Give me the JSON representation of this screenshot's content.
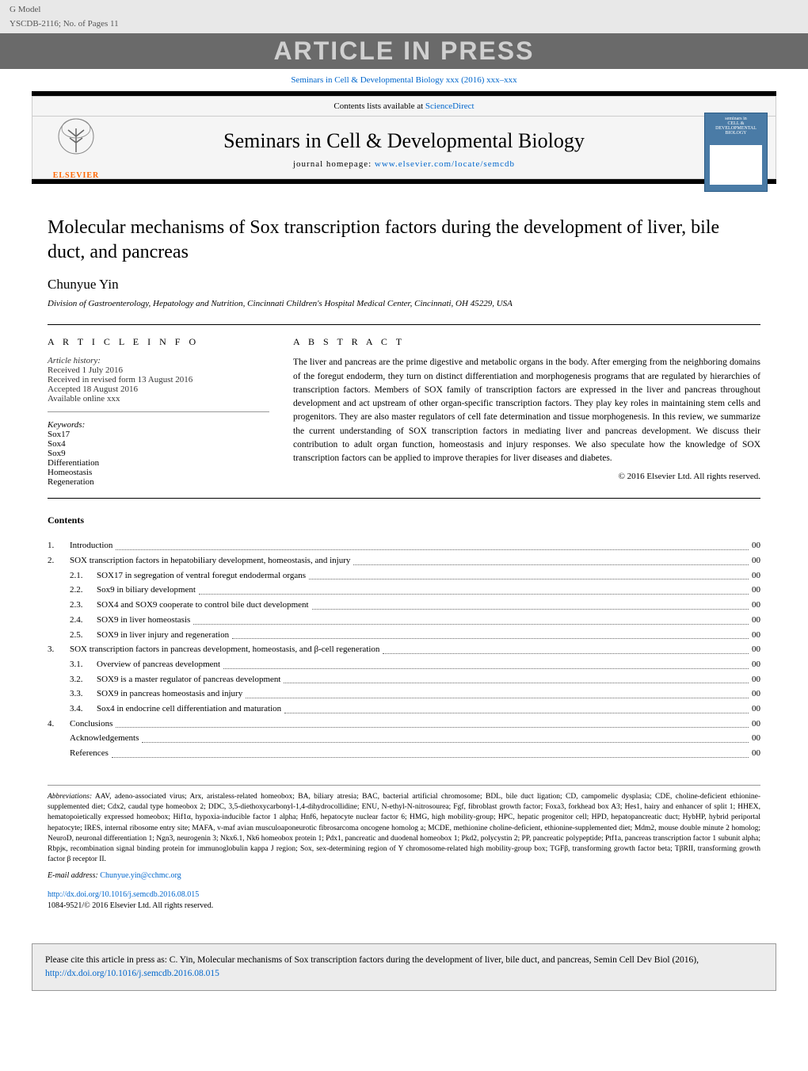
{
  "header": {
    "gmodel": "G Model",
    "docid": "YSCDB-2116;   No. of Pages 11",
    "in_press": "ARTICLE IN PRESS",
    "journal_ref": "Seminars in Cell & Developmental Biology xxx (2016) xxx–xxx",
    "contents_available": "Contents lists available at ",
    "sciencedirect": "ScienceDirect",
    "journal_name": "Seminars in Cell & Developmental Biology",
    "homepage_label": "journal homepage: ",
    "homepage_url": "www.elsevier.com/locate/semcdb",
    "publisher": "ELSEVIER"
  },
  "article": {
    "title": "Molecular mechanisms of Sox transcription factors during the development of liver, bile duct, and pancreas",
    "author": "Chunyue Yin",
    "affiliation": "Division of Gastroenterology, Hepatology and Nutrition, Cincinnati Children's Hospital Medical Center, Cincinnati, OH 45229, USA"
  },
  "info": {
    "heading": "A R T I C L E   I N F O",
    "history_label": "Article history:",
    "received": "Received 1 July 2016",
    "revised": "Received in revised form 13 August 2016",
    "accepted": "Accepted 18 August 2016",
    "online": "Available online xxx",
    "keywords_label": "Keywords:",
    "keywords": [
      "Sox17",
      "Sox4",
      "Sox9",
      "Differentiation",
      "Homeostasis",
      "Regeneration"
    ]
  },
  "abstract": {
    "heading": "A B S T R A C T",
    "text": "The liver and pancreas are the prime digestive and metabolic organs in the body. After emerging from the neighboring domains of the foregut endoderm, they turn on distinct differentiation and morphogenesis programs that are regulated by hierarchies of transcription factors. Members of SOX family of transcription factors are expressed in the liver and pancreas throughout development and act upstream of other organ-specific transcription factors. They play key roles in maintaining stem cells and progenitors. They are also master regulators of cell fate determination and tissue morphogenesis. In this review, we summarize the current understanding of SOX transcription factors in mediating liver and pancreas development. We discuss their contribution to adult organ function, homeostasis and injury responses. We also speculate how the knowledge of SOX transcription factors can be applied to improve therapies for liver diseases and diabetes.",
    "copyright": "© 2016 Elsevier Ltd. All rights reserved."
  },
  "contents": {
    "heading": "Contents",
    "items": [
      {
        "num": "1.",
        "sub": "",
        "label": "Introduction",
        "page": "00"
      },
      {
        "num": "2.",
        "sub": "",
        "label": "SOX transcription factors in hepatobiliary development, homeostasis, and injury",
        "page": "00"
      },
      {
        "num": "",
        "sub": "2.1.",
        "label": "SOX17 in segregation of ventral foregut endodermal organs",
        "page": "00"
      },
      {
        "num": "",
        "sub": "2.2.",
        "label": "Sox9 in biliary development",
        "page": "00"
      },
      {
        "num": "",
        "sub": "2.3.",
        "label": "SOX4 and SOX9 cooperate to control bile duct development",
        "page": "00"
      },
      {
        "num": "",
        "sub": "2.4.",
        "label": "SOX9 in liver homeostasis",
        "page": "00"
      },
      {
        "num": "",
        "sub": "2.5.",
        "label": "SOX9 in liver injury and regeneration",
        "page": "00"
      },
      {
        "num": "3.",
        "sub": "",
        "label": "SOX transcription factors in pancreas development, homeostasis, and β-cell regeneration",
        "page": "00"
      },
      {
        "num": "",
        "sub": "3.1.",
        "label": "Overview of pancreas development",
        "page": "00"
      },
      {
        "num": "",
        "sub": "3.2.",
        "label": "SOX9 is a master regulator of pancreas development",
        "page": "00"
      },
      {
        "num": "",
        "sub": "3.3.",
        "label": "SOX9 in pancreas homeostasis and injury",
        "page": "00"
      },
      {
        "num": "",
        "sub": "3.4.",
        "label": "Sox4 in endocrine cell differentiation and maturation",
        "page": "00"
      },
      {
        "num": "4.",
        "sub": "",
        "label": "Conclusions",
        "page": "00"
      },
      {
        "num": "",
        "sub": "",
        "label": "Acknowledgements",
        "page": "00",
        "indent": true
      },
      {
        "num": "",
        "sub": "",
        "label": "References",
        "page": "00",
        "indent": true
      }
    ]
  },
  "footnotes": {
    "abbrev_label": "Abbreviations:",
    "abbrev_text": "  AAV, adeno-associated virus; Arx, aristaless-related homeobox; BA, biliary atresia; BAC, bacterial artificial chromosome; BDL, bile duct ligation; CD, campomelic dysplasia; CDE, choline-deficient ethionine-supplemented diet; Cdx2, caudal type homeobox 2; DDC, 3,5-diethoxycarbonyl-1,4-dihydrocollidine; ENU, N-ethyl-N-nitrosourea; Fgf, fibroblast growth factor; Foxa3, forkhead box A3; Hes1, hairy and enhancer of split 1; HHEX, hematopoietically expressed homeobox; Hif1α, hypoxia-inducible factor 1 alpha; Hnf6, hepatocyte nuclear factor 6; HMG, high mobility-group; HPC, hepatic progenitor cell; HPD, hepatopancreatic duct; HybHP, hybrid periportal hepatocyte; IRES, internal ribosome entry site; MAFA, v-maf avian musculoaponeurotic fibrosarcoma oncogene homolog a; MCDE, methionine choline-deficient, ethionine-supplemented diet; Mdm2, mouse double minute 2 homolog; NeuroD, neuronal differentiation 1; Ngn3, neurogenin 3; Nkx6.1, Nk6 homeobox protein 1; Pdx1, pancreatic and duodenal homeobox 1; Pkd2, polycystin 2; PP, pancreatic polypeptide; Ptf1a, pancreas transcription factor 1 subunit alpha; Rbpjκ, recombination signal binding protein for immunoglobulin kappa J region; Sox, sex-determining region of Y chromosome-related high mobility-group box; TGFβ, transforming growth factor beta; TβRII, transforming growth factor β receptor II.",
    "email_label": "E-mail address: ",
    "email": "Chunyue.yin@cchmc.org",
    "doi_url": "http://dx.doi.org/10.1016/j.semcdb.2016.08.015",
    "issn_line": "1084-9521/© 2016 Elsevier Ltd. All rights reserved."
  },
  "citebox": {
    "text_prefix": "Please cite this article in press as: C. Yin, Molecular mechanisms of Sox transcription factors during the development of liver, bile duct, and pancreas, Semin Cell Dev Biol (2016), ",
    "url": "http://dx.doi.org/10.1016/j.semcdb.2016.08.015"
  },
  "colors": {
    "header_bg": "#e8e8e8",
    "press_bg": "#6a6a6a",
    "press_fg": "#d0d0d0",
    "link": "#0066cc",
    "elsevier": "#ff6600",
    "cover_bg": "#4a7ba6",
    "cite_bg": "#ececec"
  }
}
